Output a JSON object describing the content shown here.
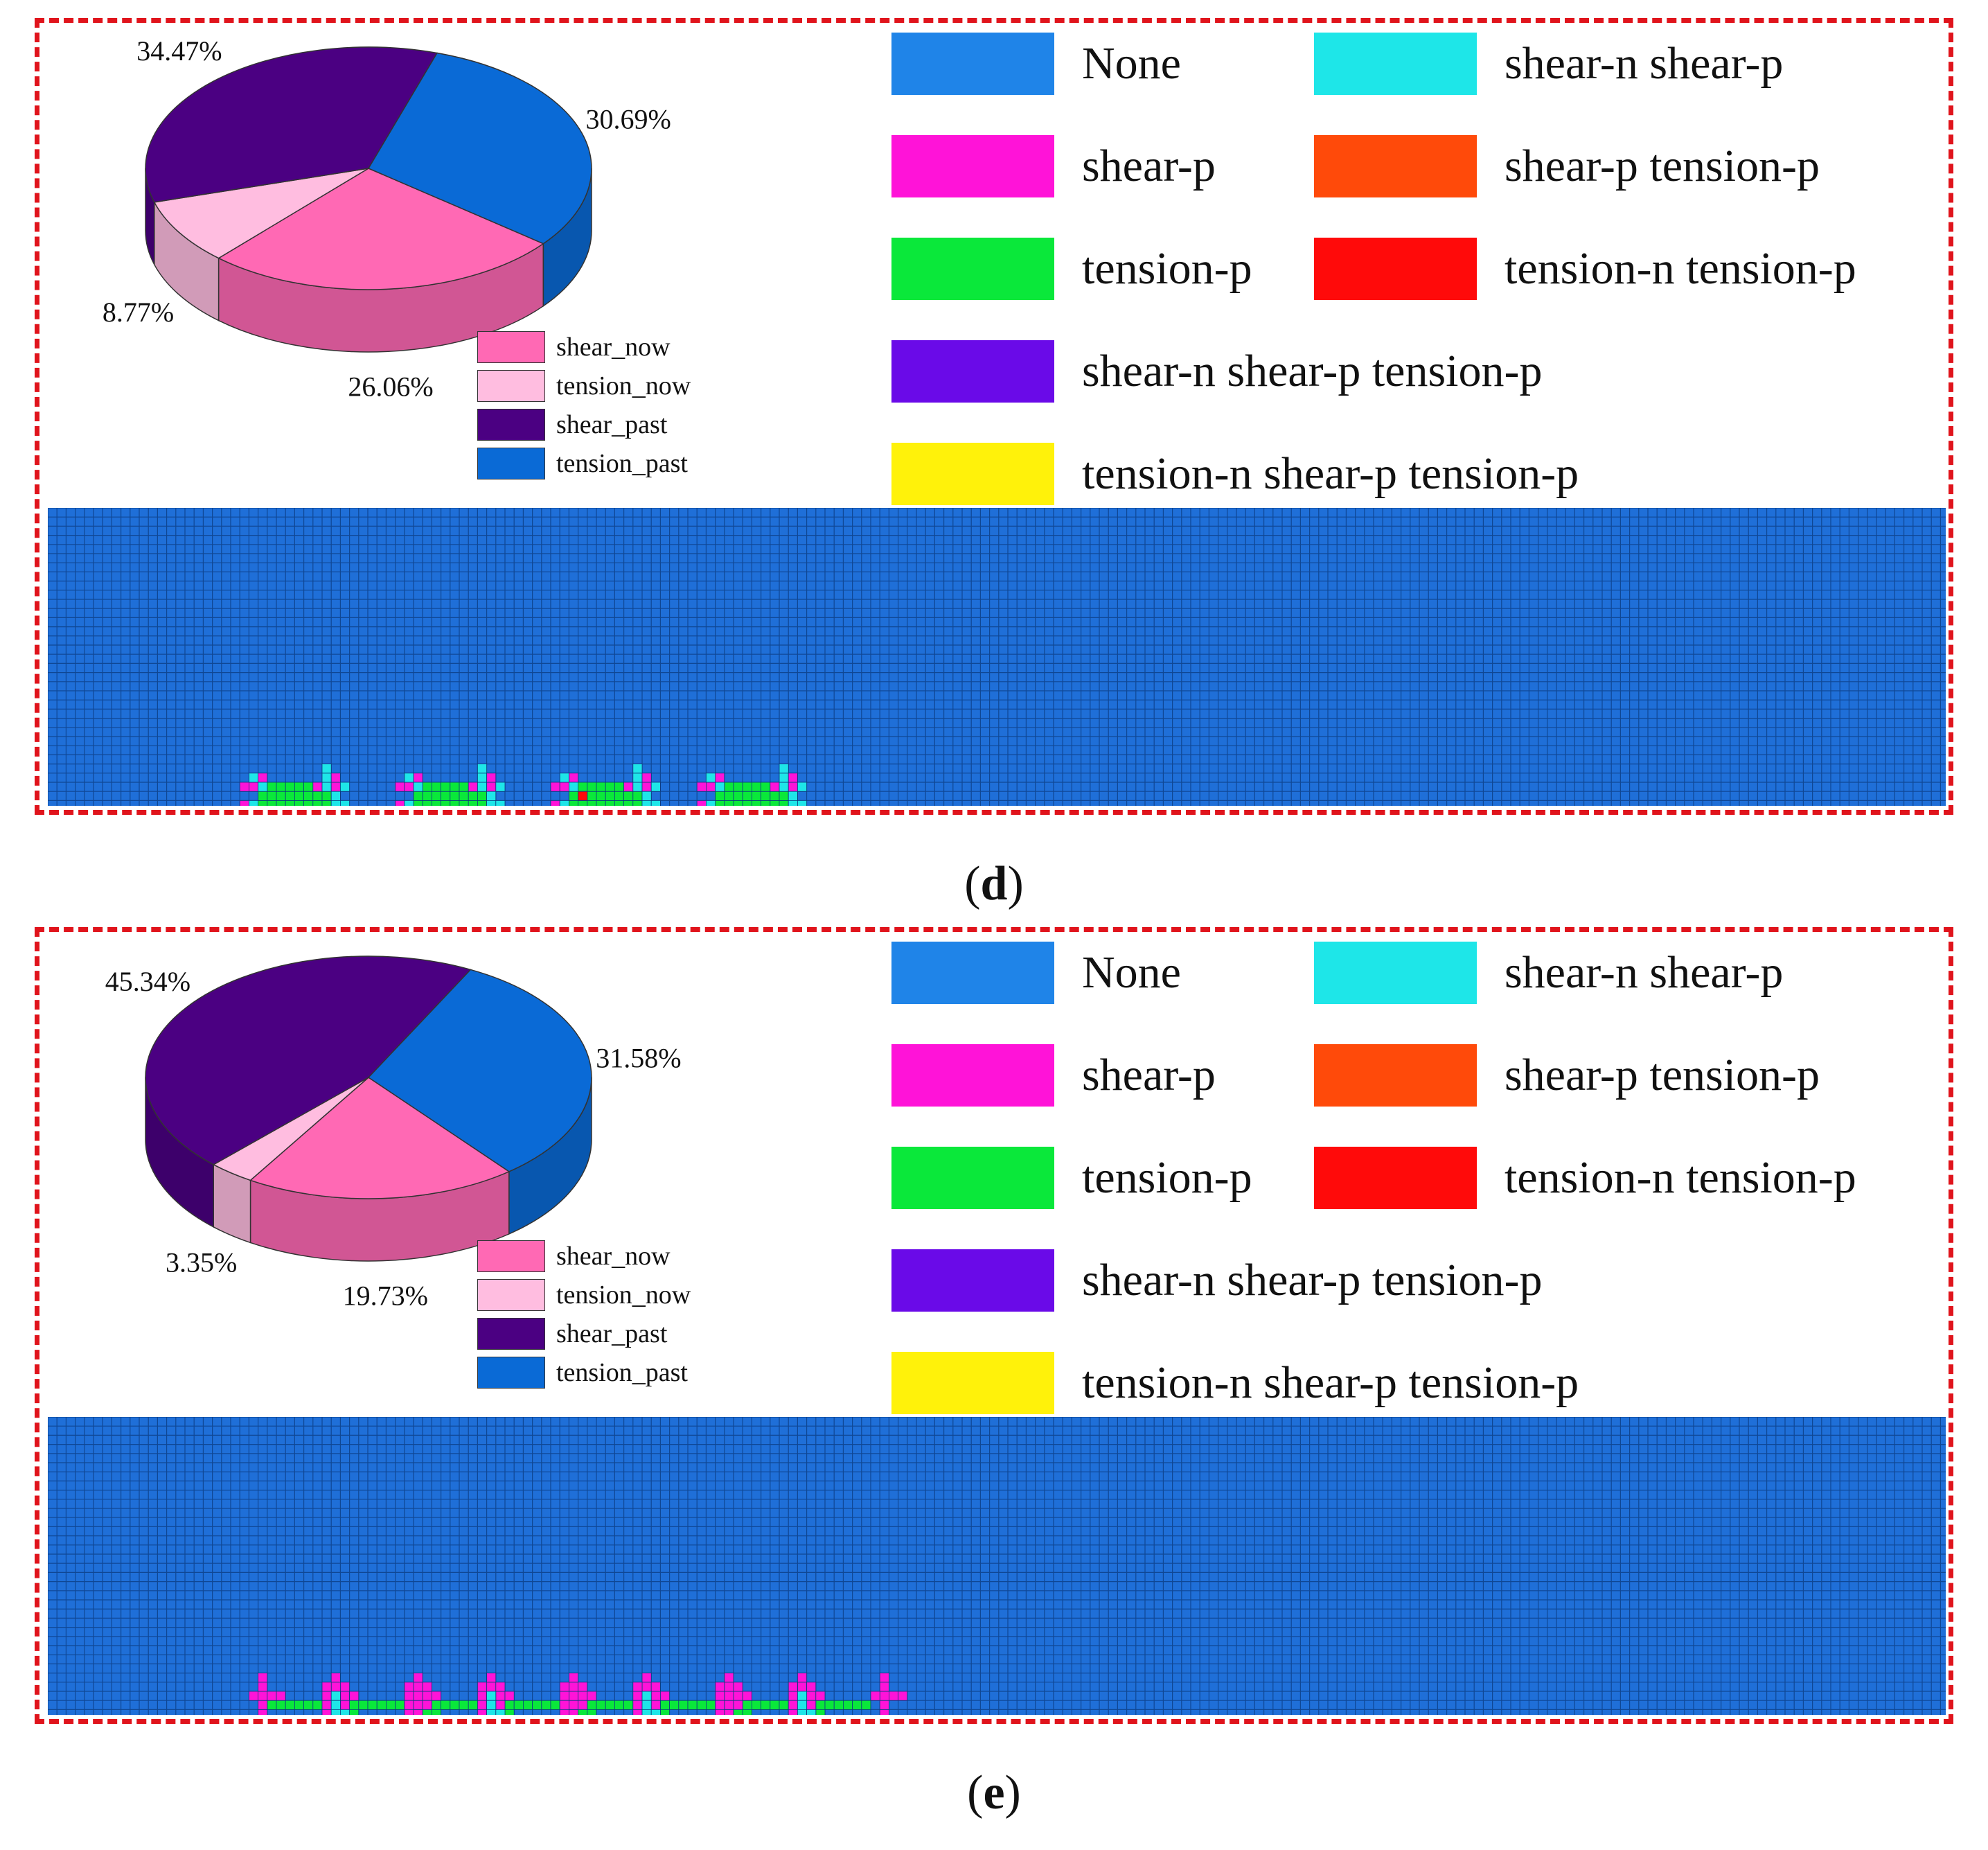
{
  "colors": {
    "frame": "#e0141c",
    "shear_now": "#ff69b4",
    "tension_now": "#ffbde0",
    "shear_past": "#4b0082",
    "tension_past": "#0a6ad6",
    "mesh_background": "#1f6fd8",
    "mesh_grid": "#0b3a7e"
  },
  "state_legend": [
    {
      "label": "None",
      "color": "#1f84e8"
    },
    {
      "label": "shear-n shear-p",
      "color": "#1ee6e8"
    },
    {
      "label": "shear-p",
      "color": "#ff13d8"
    },
    {
      "label": "shear-p tension-p",
      "color": "#ff4a0a"
    },
    {
      "label": "tension-p",
      "color": "#0ae83a"
    },
    {
      "label": "tension-n tension-p",
      "color": "#ff0a0a"
    },
    {
      "label": "shear-n shear-p tension-p",
      "color": "#6a0ae8"
    },
    {
      "label": "tension-n shear-p tension-p",
      "color": "#fff20a"
    }
  ],
  "chart_data": [
    {
      "panel": "d",
      "type": "pie",
      "title": "",
      "categories": [
        "shear_now",
        "tension_now",
        "shear_past",
        "tension_past"
      ],
      "values": [
        26.06,
        8.77,
        34.47,
        30.69
      ],
      "labels": [
        "26.06%",
        "8.77%",
        "34.47%",
        "30.69%"
      ],
      "legend": [
        "shear_now",
        "tension_now",
        "shear_past",
        "tension_past"
      ],
      "legend_position": "bottom-right"
    },
    {
      "panel": "e",
      "type": "pie",
      "title": "",
      "categories": [
        "shear_now",
        "tension_now",
        "shear_past",
        "tension_past"
      ],
      "values": [
        19.73,
        3.35,
        45.34,
        31.58
      ],
      "labels": [
        "19.73%",
        "3.35%",
        "45.34%",
        "31.58%"
      ],
      "legend": [
        "shear_now",
        "tension_now",
        "shear_past",
        "tension_past"
      ],
      "legend_position": "bottom-right"
    }
  ],
  "panels": {
    "d": {
      "label": "d"
    },
    "e": {
      "label": "e"
    }
  }
}
